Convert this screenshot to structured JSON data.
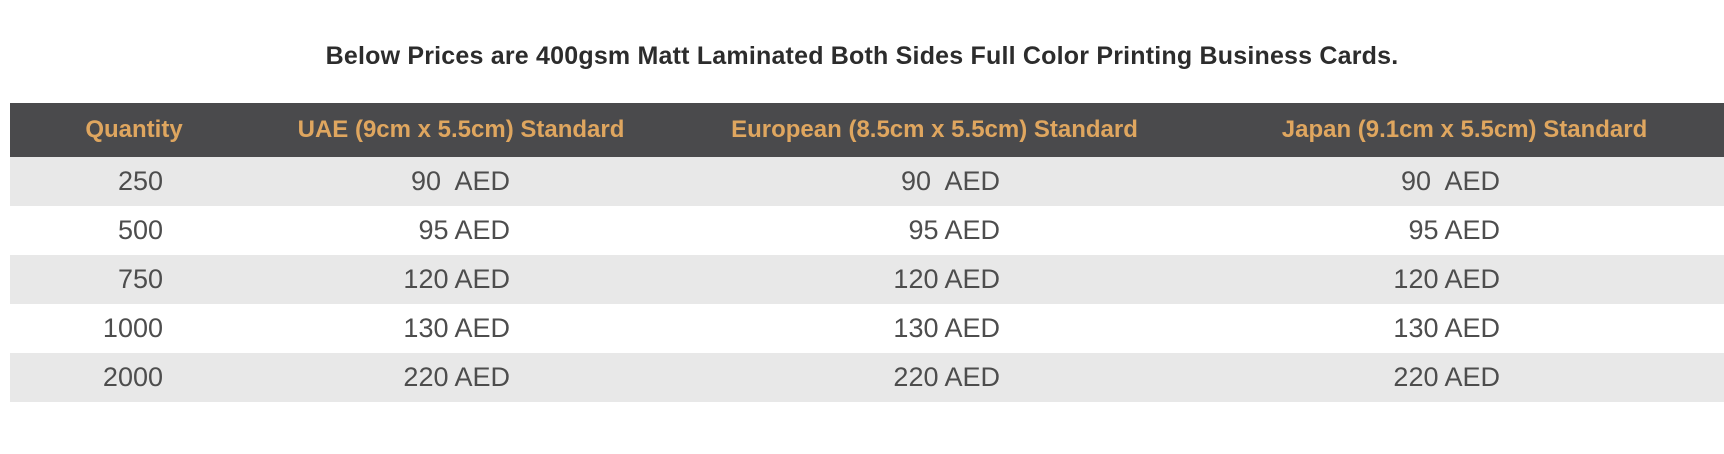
{
  "title": "Below Prices are 400gsm Matt Laminated Both Sides Full Color Printing Business Cards.",
  "table": {
    "columns": [
      {
        "label": "Quantity"
      },
      {
        "label": "UAE (9cm x 5.5cm) Standard"
      },
      {
        "label": "European (8.5cm x 5.5cm) Standard"
      },
      {
        "label": "Japan (9.1cm x 5.5cm) Standard"
      }
    ],
    "rows": [
      {
        "quantity": "250",
        "uae": "90  AED",
        "european": "90  AED",
        "japan": "90  AED"
      },
      {
        "quantity": "500",
        "uae": "95 AED",
        "european": "95 AED",
        "japan": "95 AED"
      },
      {
        "quantity": "750",
        "uae": "120 AED",
        "european": "120 AED",
        "japan": "120 AED"
      },
      {
        "quantity": "1000",
        "uae": "130 AED",
        "european": "130 AED",
        "japan": "130 AED"
      },
      {
        "quantity": "2000",
        "uae": "220 AED",
        "european": "220 AED",
        "japan": "220 AED"
      }
    ]
  },
  "colors": {
    "header_bg": "#4a4a4c",
    "header_text": "#dfa65f",
    "stripe_bg": "#e8e8e8",
    "cell_text": "#4d4d4d",
    "title_text": "#2c2c2c"
  }
}
